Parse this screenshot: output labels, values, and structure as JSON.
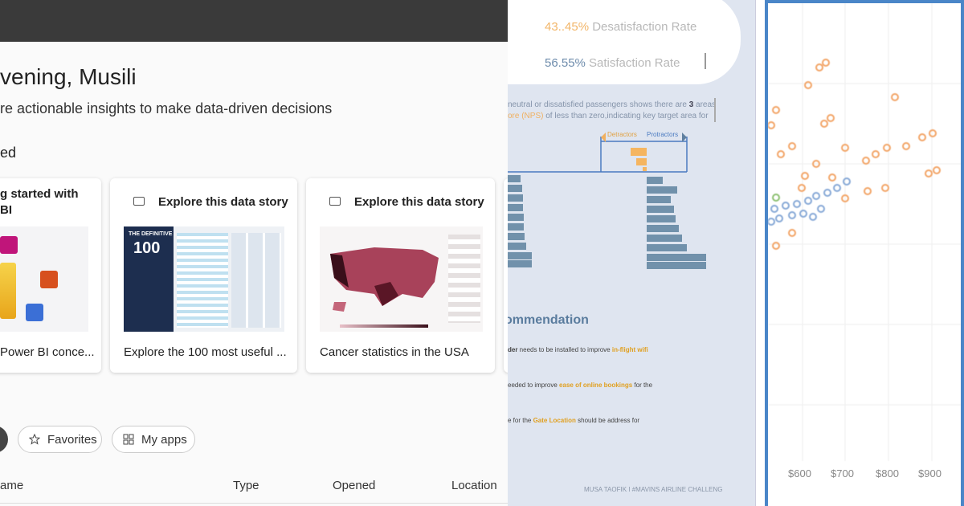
{
  "home": {
    "greeting": "vening, Musili",
    "subtitle": "re actionable insights to make data-driven decisions",
    "section": "ed",
    "cards": [
      {
        "title_lines": [
          "g started with",
          "BI"
        ],
        "caption": "Power BI conce..."
      },
      {
        "header": "Explore this data story",
        "thumb_kicker": "THE DEFINITIVE",
        "thumb_number": "100",
        "caption": "Explore the 100 most useful ..."
      },
      {
        "header": "Explore this data story",
        "caption": "Cancer statistics in the USA"
      }
    ],
    "filters": [
      "Favorites",
      "My apps"
    ],
    "table_headers": [
      "ame",
      "Type",
      "Opened",
      "Location"
    ]
  },
  "report": {
    "rates": [
      {
        "value": "43..45%",
        "label": "Desatisfaction Rate"
      },
      {
        "value": "56.55%",
        "label": "Satisfaction Rate"
      }
    ],
    "insight_lines": [
      [
        "neutral or dissatisfied passengers shows there are ",
        "3",
        " areas"
      ],
      [
        "ore (NPS)",
        " of less than zero,indicating key target area for"
      ]
    ],
    "legend": [
      "Detractors",
      "Protractors"
    ],
    "heading": "ommendation",
    "recommendations": [
      [
        "der",
        " needs to be installed to improve ",
        "in-flight wifi"
      ],
      [
        "eeded to improve ",
        "ease of online bookings",
        " for the"
      ],
      [
        "e for the ",
        "Gate Location",
        " should be address for"
      ]
    ],
    "footer": "MUSA TAOFIK I #MAVINS AIRLINE CHALLENG"
  },
  "scatter": {
    "x_tick_labels": [
      "$600",
      "$700",
      "$800",
      "$900"
    ]
  }
}
